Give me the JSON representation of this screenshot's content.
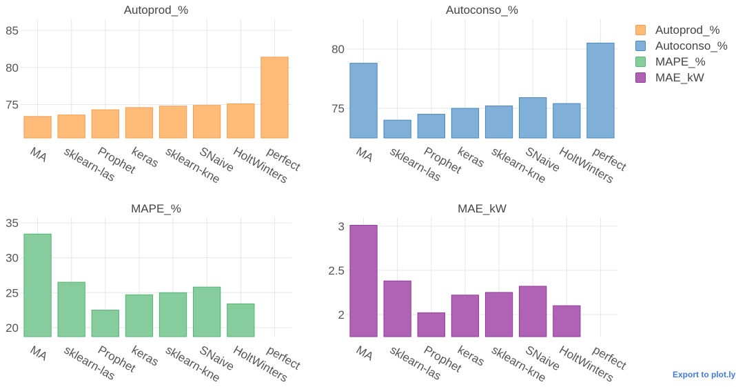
{
  "chart_data": [
    {
      "type": "bar",
      "title": "Autoprod_%",
      "color": "#ffbb77",
      "edge": "#f0a050",
      "categories": [
        "MA",
        "sklearn-las",
        "Prophet",
        "keras",
        "sklearn-kne",
        "SNaive",
        "HoltWinters",
        "perfect"
      ],
      "values": [
        73.4,
        73.6,
        74.3,
        74.6,
        74.8,
        74.9,
        75.1,
        81.4
      ],
      "ylim": [
        70.5,
        86.5
      ],
      "yticks": [
        75,
        80,
        85
      ]
    },
    {
      "type": "bar",
      "title": "Autoconso_%",
      "color": "#80afd8",
      "edge": "#4a86bd",
      "categories": [
        "MA",
        "sklearn-las",
        "Prophet",
        "keras",
        "sklearn-kne",
        "SNaive",
        "HoltWinters",
        "perfect"
      ],
      "values": [
        78.8,
        74.0,
        74.5,
        75.0,
        75.2,
        75.9,
        75.4,
        80.5
      ],
      "ylim": [
        72.5,
        82.5
      ],
      "yticks": [
        75,
        80
      ]
    },
    {
      "type": "bar",
      "title": "MAPE_%",
      "color": "#87cc9c",
      "edge": "#52b574",
      "categories": [
        "MA",
        "sklearn-las",
        "Prophet",
        "keras",
        "sklearn-kne",
        "SNaive",
        "HoltWinters",
        "perfect"
      ],
      "values": [
        33.4,
        26.5,
        22.5,
        24.7,
        25.0,
        25.8,
        23.4,
        null
      ],
      "ylim": [
        18.7,
        35.8
      ],
      "yticks": [
        20,
        25,
        30,
        35
      ]
    },
    {
      "type": "bar",
      "title": "MAE_kW",
      "color": "#b062b4",
      "edge": "#8e3a98",
      "categories": [
        "MA",
        "sklearn-las",
        "Prophet",
        "keras",
        "sklearn-kne",
        "SNaive",
        "HoltWinters",
        "perfect"
      ],
      "values": [
        3.01,
        2.38,
        2.02,
        2.22,
        2.25,
        2.32,
        2.1,
        null
      ],
      "ylim": [
        1.75,
        3.1
      ],
      "yticks": [
        2,
        2.5,
        3
      ]
    }
  ],
  "legend": {
    "items": [
      {
        "label": "Autoprod_%",
        "color": "#ffbb77",
        "edge": "#f0a050"
      },
      {
        "label": "Autoconso_%",
        "color": "#80afd8",
        "edge": "#4a86bd"
      },
      {
        "label": "MAPE_%",
        "color": "#87cc9c",
        "edge": "#52b574"
      },
      {
        "label": "MAE_kW",
        "color": "#b062b4",
        "edge": "#8e3a98"
      }
    ]
  },
  "export_label": "Export to plot.ly"
}
